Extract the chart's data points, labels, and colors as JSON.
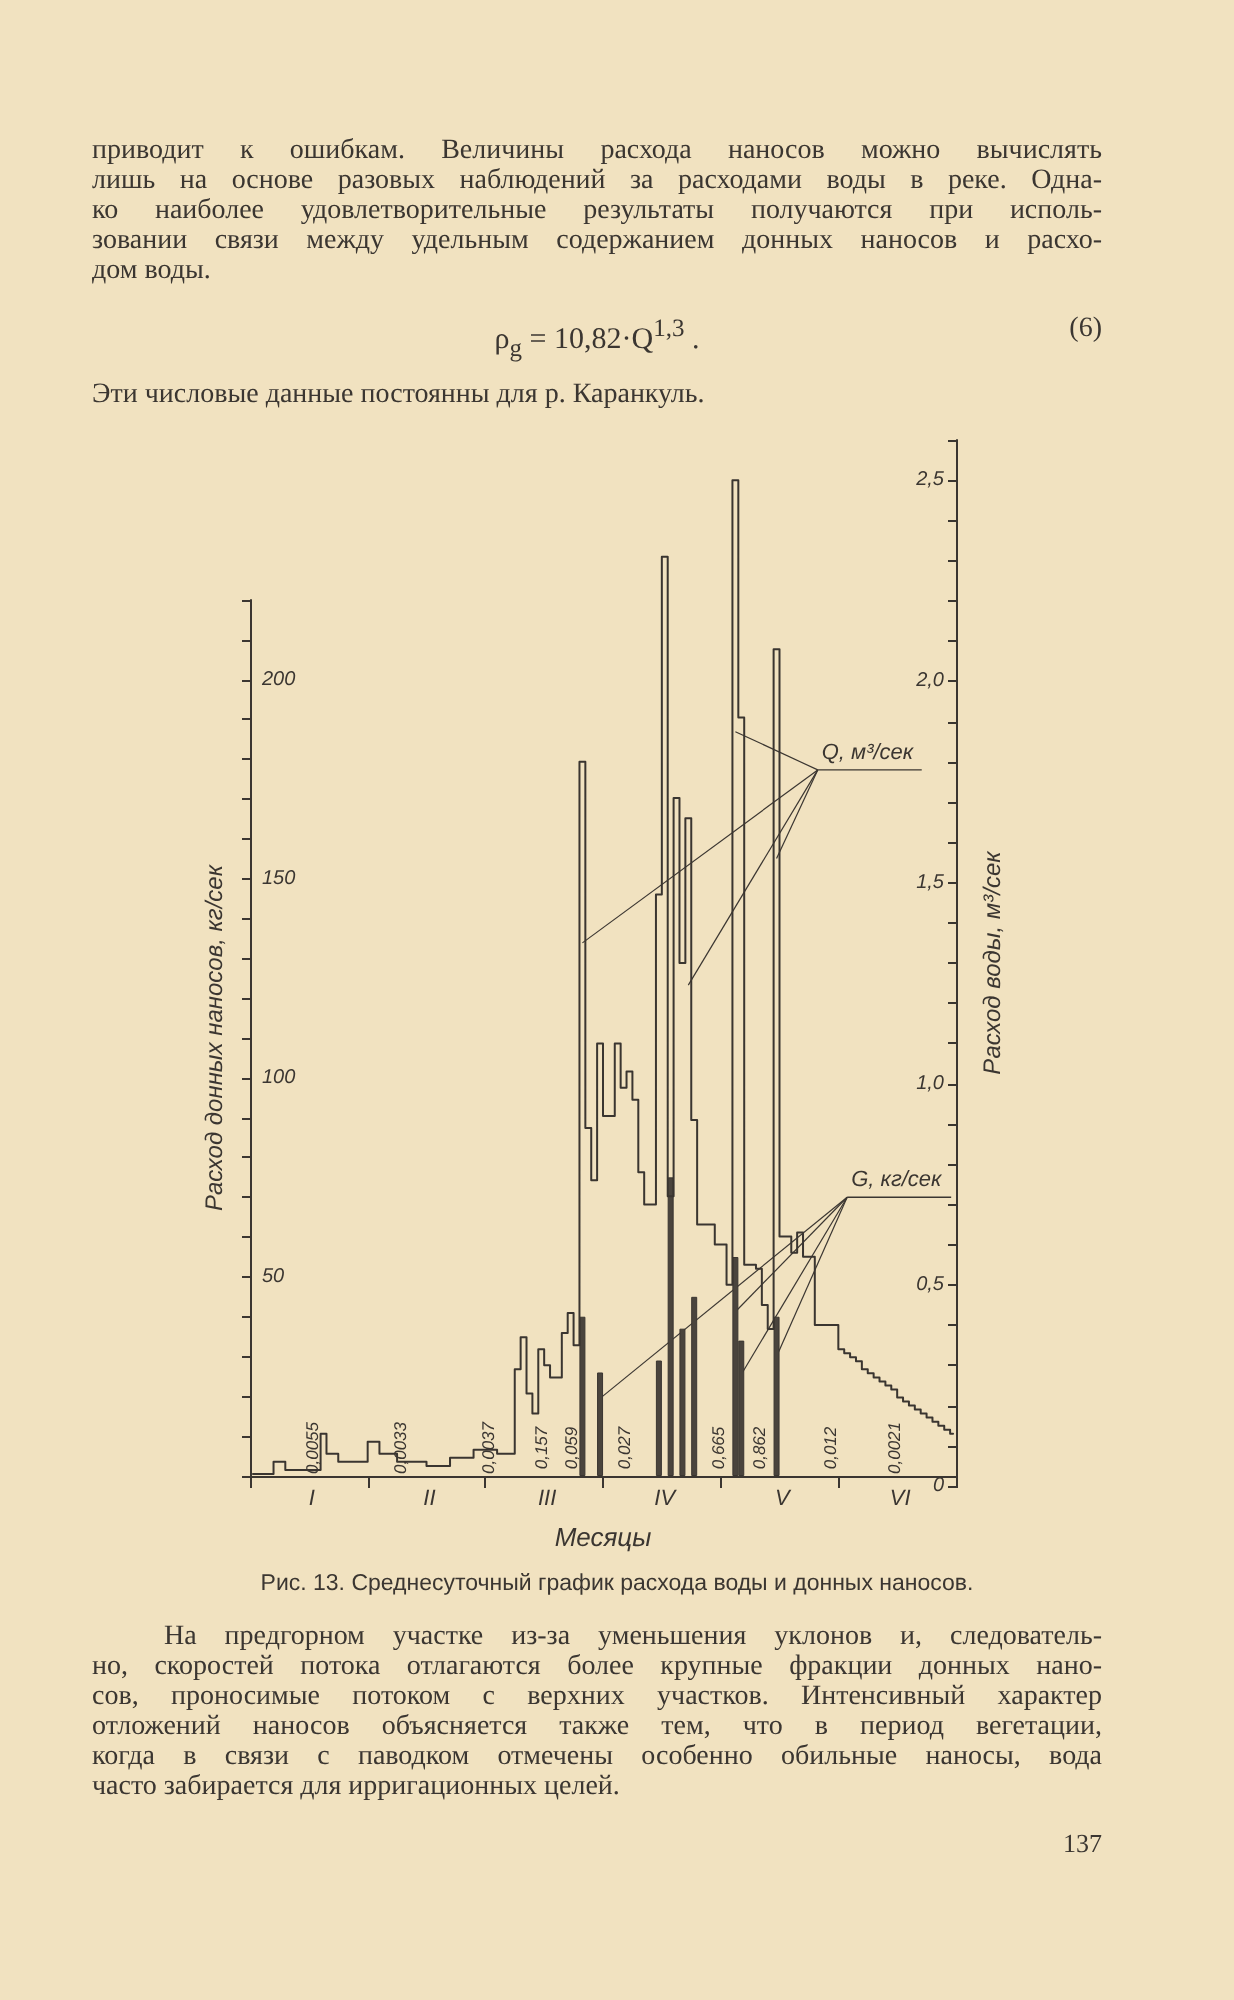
{
  "chart_data": {
    "type": "bar",
    "title": "Рис. 13. Среднесуточный график расхода воды и донных наносов.",
    "xlabel": "Месяцы",
    "ylabel": "Расход донных наносов, кг/сек",
    "y2label": "Расход воды, м³/сек",
    "categories": [
      null,
      null,
      null,
      null,
      null,
      null,
      null,
      null,
      null,
      null,
      "I",
      null,
      null,
      null,
      null,
      null,
      null,
      null,
      null,
      null,
      null,
      null,
      null,
      null,
      null,
      null,
      null,
      null,
      null,
      null,
      "II",
      null,
      null,
      null,
      null,
      null,
      null,
      null,
      null,
      null,
      null,
      null,
      null,
      null,
      null,
      null,
      null,
      null,
      null,
      null,
      "III",
      null,
      null,
      null,
      null,
      null,
      null,
      null,
      null,
      null,
      null,
      null,
      null,
      null,
      null,
      null,
      null,
      null,
      null,
      null,
      "IV",
      null,
      null,
      null,
      null,
      null,
      null,
      null,
      null,
      null,
      null,
      null,
      null,
      null,
      null,
      null,
      null,
      null,
      null,
      null,
      "V",
      null,
      null,
      null,
      null,
      null,
      null,
      null,
      null,
      null,
      null,
      null,
      null,
      null,
      null,
      null,
      null,
      null,
      null,
      null,
      "VI",
      null,
      null,
      null,
      null,
      null,
      null,
      null,
      null,
      null
    ],
    "ylim": [
      0,
      220
    ],
    "yticks": [
      {
        "value": 0,
        "label": null
      },
      {
        "value": 10,
        "label": null
      },
      {
        "value": 20,
        "label": null
      },
      {
        "value": 30,
        "label": null
      },
      {
        "value": 40,
        "label": null
      },
      50,
      {
        "value": 60,
        "label": null
      },
      {
        "value": 70,
        "label": null
      },
      {
        "value": 80,
        "label": null
      },
      {
        "value": 90,
        "label": null
      },
      100,
      {
        "value": 110,
        "label": null
      },
      {
        "value": 120,
        "label": null
      },
      {
        "value": 130,
        "label": null
      },
      {
        "value": 140,
        "label": null
      },
      150,
      {
        "value": 160,
        "label": null
      },
      {
        "value": 170,
        "label": null
      },
      {
        "value": 180,
        "label": null
      },
      {
        "value": 190,
        "label": null
      },
      200,
      {
        "value": 210,
        "label": null
      },
      {
        "value": 220,
        "label": null
      }
    ],
    "y2lim": [
      0,
      2.6
    ],
    "y2ticks": [
      0,
      {
        "value": 0.1,
        "label": null
      },
      {
        "value": 0.2,
        "label": null
      },
      {
        "value": 0.3,
        "label": null
      },
      {
        "value": 0.4,
        "label": null
      },
      {
        "value": 0.5,
        "label": "0,5"
      },
      {
        "value": 0.6,
        "label": null
      },
      {
        "value": 0.7,
        "label": null
      },
      {
        "value": 0.8,
        "label": null
      },
      {
        "value": 0.9,
        "label": null
      },
      {
        "value": 1,
        "label": "1,0"
      },
      {
        "value": 1.1,
        "label": null
      },
      {
        "value": 1.2,
        "label": null
      },
      {
        "value": 1.3,
        "label": null
      },
      {
        "value": 1.4,
        "label": null
      },
      {
        "value": 1.5,
        "label": "1,5"
      },
      {
        "value": 1.6,
        "label": null
      },
      {
        "value": 1.7,
        "label": null
      },
      {
        "value": 1.8,
        "label": null
      },
      {
        "value": 1.9,
        "label": null
      },
      {
        "value": 2,
        "label": "2,0"
      },
      {
        "value": 2.1,
        "label": null
      },
      {
        "value": 2.2,
        "label": null
      },
      {
        "value": 2.3,
        "label": null
      },
      {
        "value": 2.4,
        "label": null
      },
      {
        "value": 2.5,
        "label": "2,5"
      },
      {
        "value": 2.6,
        "label": null
      }
    ],
    "marker": "none",
    "grid": false,
    "series": [
      {
        "name": "G, кг/сек",
        "color": "#4a443d",
        "values": [
          null,
          null,
          null,
          null,
          null,
          null,
          null,
          null,
          null,
          null,
          null,
          null,
          null,
          null,
          null,
          null,
          null,
          null,
          null,
          null,
          null,
          null,
          null,
          null,
          null,
          null,
          null,
          null,
          null,
          null,
          null,
          null,
          null,
          null,
          null,
          null,
          null,
          null,
          null,
          null,
          null,
          null,
          null,
          null,
          null,
          null,
          null,
          null,
          null,
          null,
          null,
          null,
          null,
          null,
          null,
          null,
          40,
          null,
          null,
          26,
          null,
          null,
          null,
          null,
          null,
          null,
          null,
          null,
          null,
          29,
          null,
          75,
          null,
          37,
          null,
          45,
          null,
          null,
          null,
          null,
          null,
          null,
          55,
          34,
          null,
          null,
          null,
          null,
          null,
          40,
          null,
          null,
          null,
          null,
          null,
          null,
          null,
          null,
          null,
          null,
          null,
          null,
          null,
          null,
          null,
          null,
          null,
          null,
          null,
          null,
          null,
          null,
          null,
          null,
          null,
          null,
          null,
          null,
          null,
          null
        ]
      },
      {
        "name": "Q, м³/сек",
        "type": "step",
        "axis": "y2",
        "color": "#3a3530",
        "values": [
          0.03,
          0.03,
          0.03,
          0.03,
          0.06,
          0.06,
          0.04,
          0.04,
          0.04,
          0.04,
          0.04,
          0.04,
          0.13,
          0.08,
          0.08,
          0.06,
          0.06,
          0.06,
          0.06,
          0.06,
          0.11,
          0.11,
          0.08,
          0.08,
          0.08,
          0.06,
          0.06,
          0.06,
          0.06,
          0.06,
          0.05,
          0.05,
          0.05,
          0.05,
          0.07,
          0.07,
          0.07,
          0.07,
          0.09,
          0.09,
          0.09,
          0.09,
          0.08,
          0.08,
          0.08,
          0.29,
          0.37,
          0.23,
          0.18,
          0.34,
          0.3,
          0.27,
          0.27,
          0.38,
          0.43,
          0.35,
          1.8,
          0.89,
          0.76,
          1.1,
          0.92,
          0.92,
          1.1,
          0.99,
          1.03,
          0.96,
          0.78,
          0.7,
          0.7,
          1.47,
          2.31,
          0.72,
          1.71,
          1.3,
          1.66,
          0.91,
          0.65,
          0.65,
          0.65,
          0.6,
          0.6,
          0.5,
          2.5,
          1.91,
          0.55,
          0.55,
          0.54,
          0.45,
          0.39,
          2.08,
          0.62,
          0.62,
          0.58,
          0.63,
          0.57,
          0.57,
          0.4,
          0.4,
          0.4,
          0.4,
          0.34,
          0.33,
          0.32,
          0.31,
          0.29,
          0.28,
          0.27,
          0.26,
          0.25,
          0.24,
          0.22,
          0.21,
          0.2,
          0.19,
          0.18,
          0.17,
          0.16,
          0.15,
          0.14,
          0.13
        ]
      }
    ],
    "annotations": [
      "приводит к ошибкам. Величины расхода наносов можно вычислять",
      "лишь на основе разовых наблюдений за расходами воды в реке. Одна-",
      "ко наиболее удовлетворительные результаты получаются при исполь-",
      "зовании связи между удельным содержанием донных наносов и расхо-",
      "дом воды.",
      "ρ$_{g}$ = 10,82·Q$^{1,3}$ .",
      "(6)",
      "Эти числовые данные постоянны для р. Каранкуль.",
      "На предгорном участке из-за уменьшения уклонов и, следователь-",
      "но, скоростей потока отлагаются более крупные фракции донных нано-",
      "сов, проносимые потоком с верхних участков. Интенсивный характер",
      "отложений наносов объясняется также тем,  что в период  вегетации,",
      "когда в связи с паводком отмечены особенно обильные наносы, вода",
      "часто забирается для ирригационных целей.",
      "137",
      "0,0055",
      "0,0033",
      "0,0037",
      "0,157",
      "0,059",
      "0,027",
      "0,665",
      "0,862",
      "0,012",
      "0,0021"
    ]
  }
}
